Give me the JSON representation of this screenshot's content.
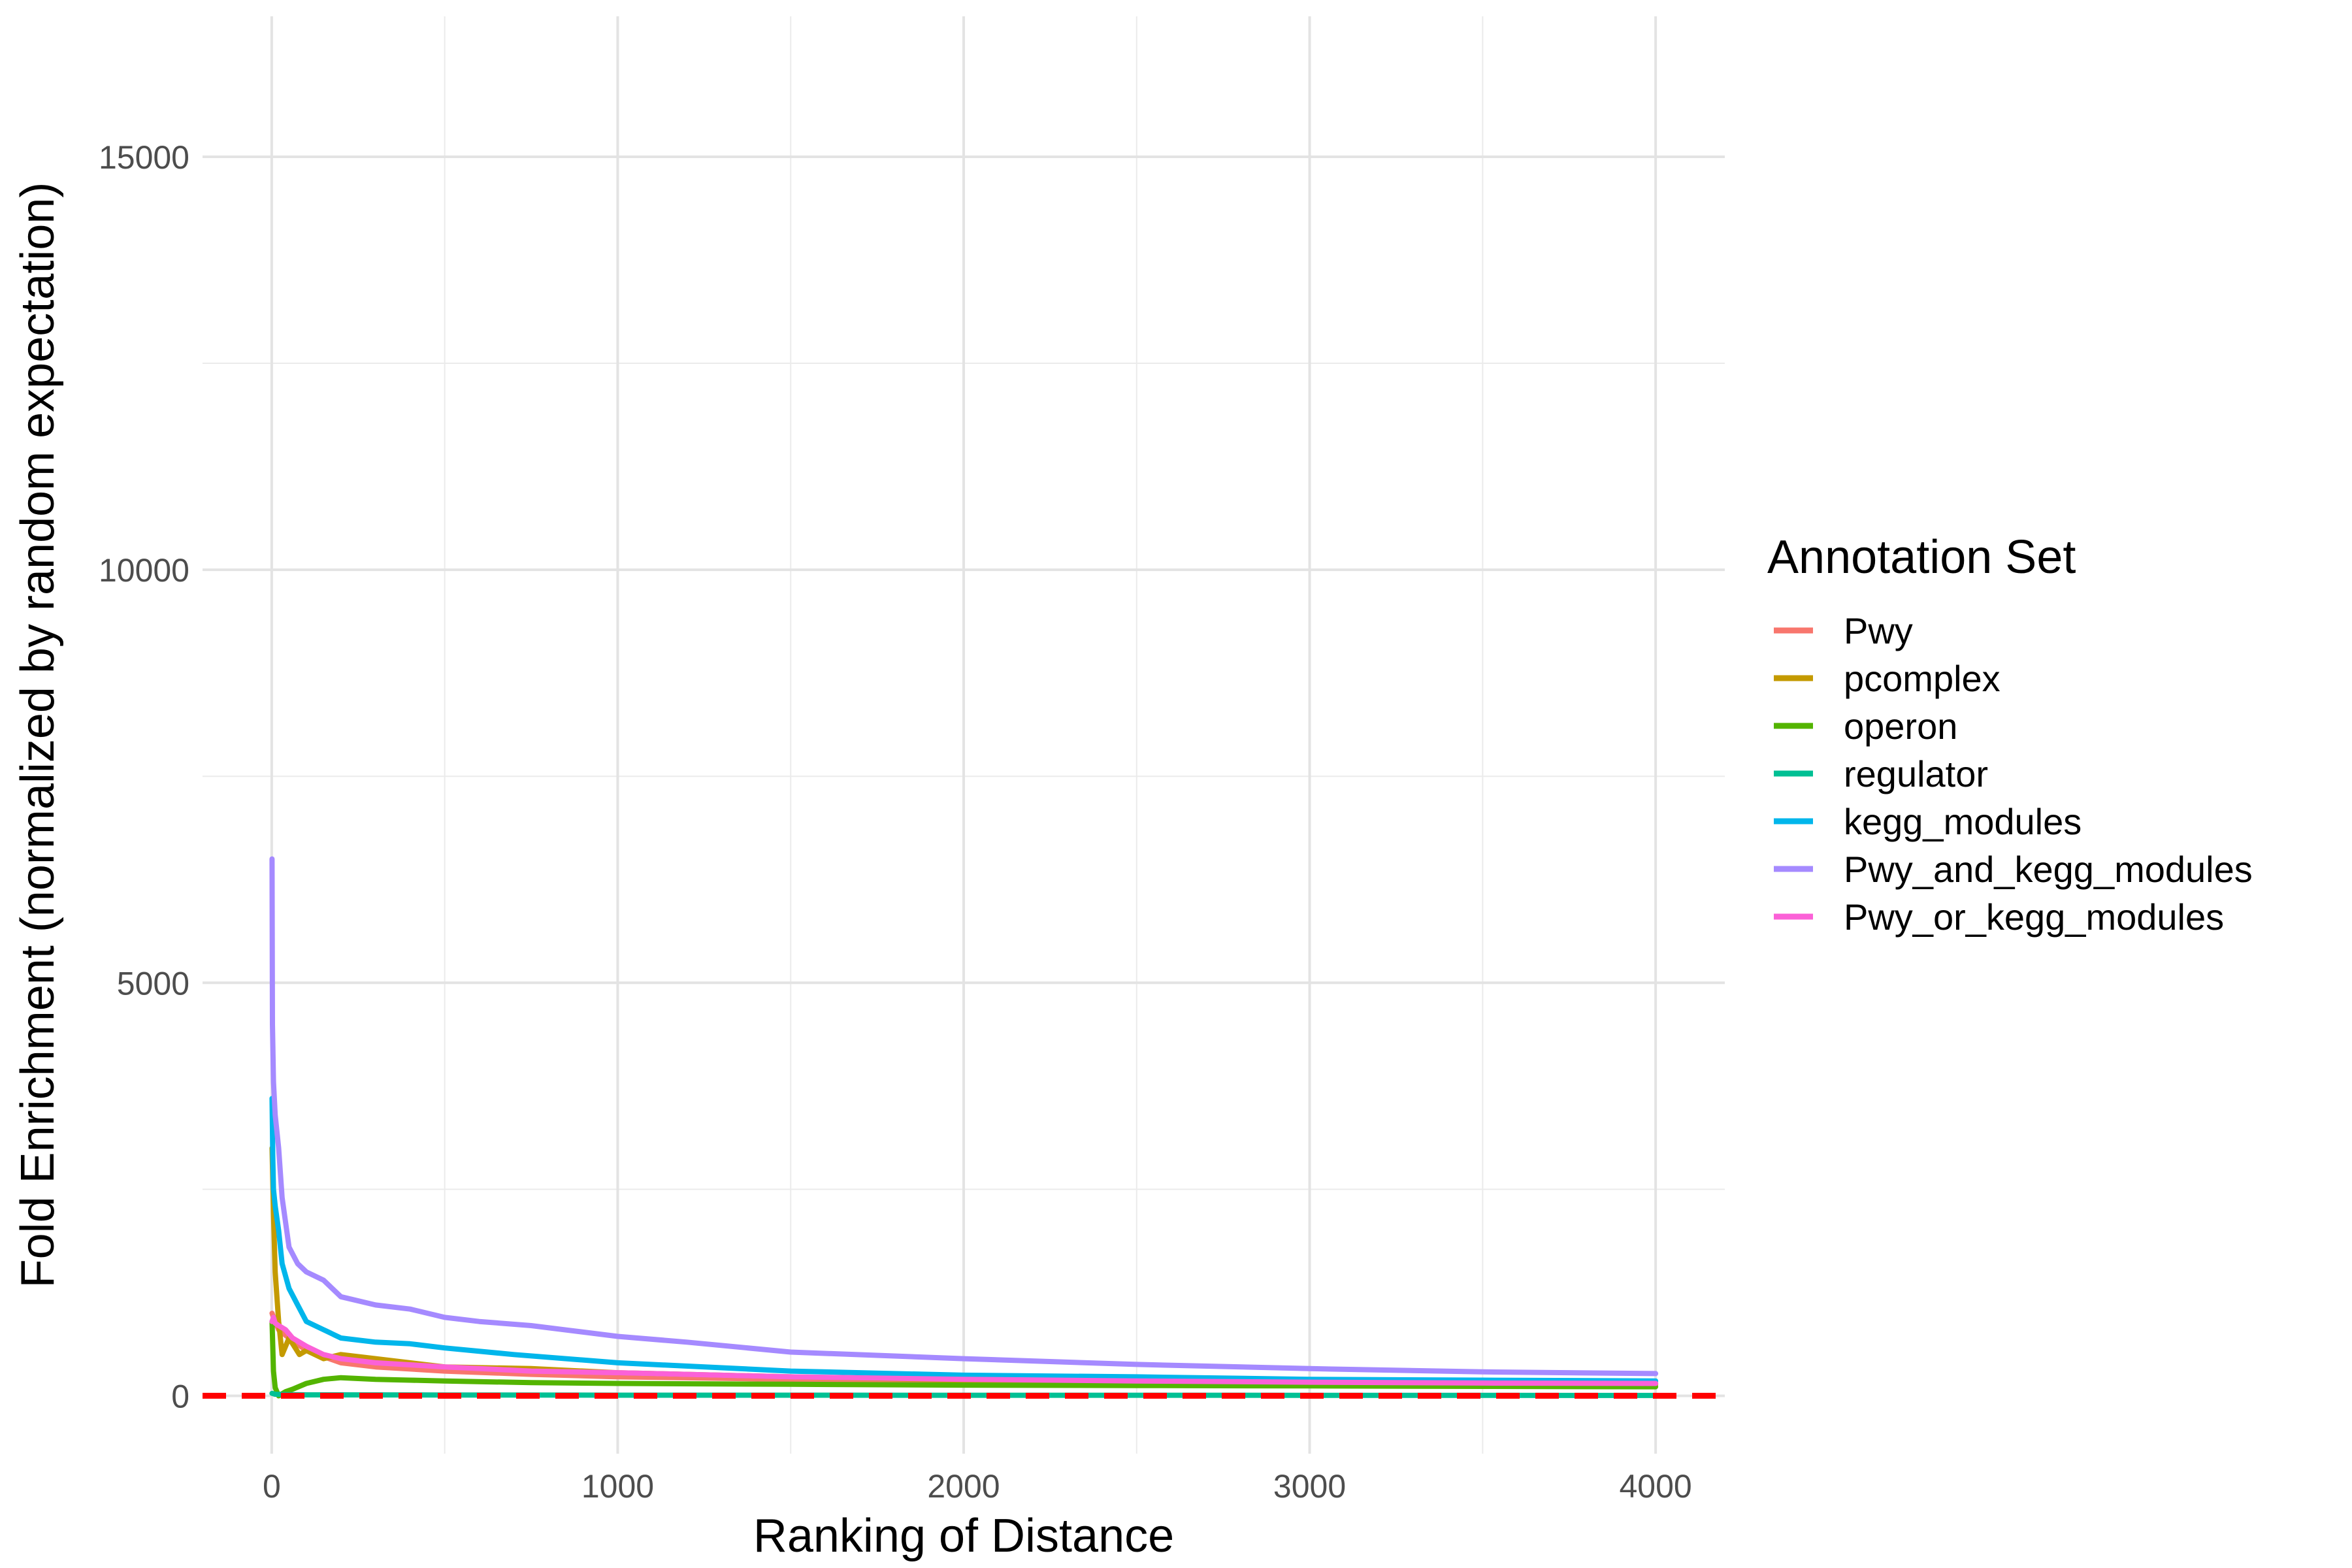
{
  "chart_data": {
    "type": "line",
    "title": "",
    "xlabel": "Ranking of Distance",
    "ylabel": "Fold Enrichment (normalized by random expectation)",
    "xlim": [
      -200,
      4200
    ],
    "ylim": [
      -700,
      16700
    ],
    "x_ticks": [
      0,
      1000,
      2000,
      3000,
      4000
    ],
    "x_tick_labels": [
      "0",
      "1000",
      "2000",
      "3000",
      "4000"
    ],
    "y_ticks": [
      0,
      5000,
      10000,
      15000
    ],
    "y_tick_labels": [
      "0",
      "5000",
      "10000",
      "15000"
    ],
    "grid": true,
    "legend": {
      "title": "Annotation Set",
      "position": "right"
    },
    "reference_line": {
      "y": 1,
      "color": "#ff0000",
      "style": "dashed"
    },
    "series": [
      {
        "name": "Pwy",
        "color": "#f8766d",
        "x": [
          1,
          5,
          10,
          20,
          50,
          100,
          200,
          300,
          500,
          750,
          1000,
          1500,
          2000,
          2500,
          3000,
          3500,
          4000
        ],
        "y": [
          1000,
          950,
          900,
          800,
          700,
          550,
          400,
          350,
          300,
          260,
          230,
          200,
          180,
          170,
          160,
          150,
          150
        ]
      },
      {
        "name": "pcomplex",
        "color": "#c49a00",
        "x": [
          1,
          5,
          10,
          20,
          30,
          50,
          80,
          100,
          150,
          200,
          300,
          500,
          750,
          1000,
          1500,
          2000,
          2500,
          3000,
          3500,
          4000
        ],
        "y": [
          3000,
          2200,
          1500,
          900,
          500,
          700,
          500,
          550,
          450,
          500,
          450,
          350,
          330,
          280,
          230,
          190,
          170,
          160,
          150,
          140
        ]
      },
      {
        "name": "operon",
        "color": "#53b400",
        "x": [
          1,
          3,
          5,
          10,
          20,
          40,
          60,
          100,
          150,
          200,
          300,
          400,
          500,
          750,
          1000,
          1500,
          2000,
          2500,
          3000,
          3500,
          4000
        ],
        "y": [
          900,
          600,
          300,
          100,
          0,
          50,
          80,
          150,
          200,
          220,
          200,
          190,
          180,
          160,
          150,
          140,
          130,
          125,
          120,
          115,
          110
        ]
      },
      {
        "name": "regulator",
        "color": "#00c094",
        "x": [
          1,
          10,
          50,
          100,
          500,
          1000,
          2000,
          3000,
          4000
        ],
        "y": [
          30,
          20,
          15,
          12,
          10,
          8,
          7,
          6,
          5
        ]
      },
      {
        "name": "kegg_modules",
        "color": "#00b6eb",
        "x": [
          1,
          3,
          5,
          10,
          20,
          30,
          50,
          75,
          100,
          150,
          200,
          300,
          400,
          500,
          700,
          1000,
          1500,
          2000,
          2500,
          3000,
          3500,
          4000
        ],
        "y": [
          3600,
          2900,
          2500,
          2300,
          2000,
          1600,
          1300,
          1100,
          900,
          800,
          700,
          650,
          630,
          580,
          500,
          400,
          300,
          250,
          230,
          200,
          190,
          180
        ]
      },
      {
        "name": "Pwy_and_kegg_modules",
        "color": "#a58aff",
        "x": [
          1,
          2,
          5,
          10,
          20,
          30,
          50,
          75,
          100,
          150,
          200,
          300,
          400,
          500,
          600,
          750,
          1000,
          1200,
          1500,
          2000,
          2500,
          3000,
          3500,
          4000
        ],
        "y": [
          6500,
          4500,
          3800,
          3400,
          3000,
          2400,
          1800,
          1600,
          1500,
          1400,
          1200,
          1100,
          1050,
          950,
          900,
          850,
          720,
          650,
          530,
          450,
          380,
          330,
          290,
          270
        ]
      },
      {
        "name": "Pwy_or_kegg_modules",
        "color": "#fb61d7",
        "x": [
          1,
          5,
          10,
          20,
          40,
          60,
          100,
          150,
          200,
          300,
          500,
          750,
          1000,
          1500,
          2000,
          2500,
          3000,
          3500,
          4000
        ],
        "y": [
          900,
          950,
          880,
          850,
          800,
          700,
          600,
          500,
          450,
          400,
          350,
          300,
          280,
          230,
          200,
          180,
          165,
          155,
          150
        ]
      }
    ]
  }
}
